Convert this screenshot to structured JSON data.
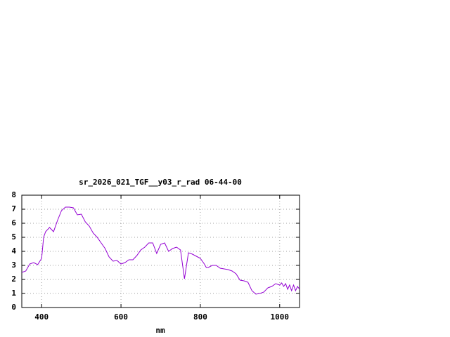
{
  "chart_data": {
    "type": "line",
    "title": "sr_2026_021_TGF__y03_r_rad 06-44-00",
    "x_label": "nm",
    "x": [
      350,
      360,
      370,
      380,
      390,
      400,
      405,
      410,
      420,
      430,
      440,
      450,
      460,
      470,
      480,
      490,
      500,
      510,
      520,
      530,
      540,
      550,
      560,
      570,
      580,
      590,
      600,
      610,
      620,
      630,
      640,
      650,
      660,
      670,
      680,
      690,
      700,
      710,
      720,
      730,
      740,
      750,
      760,
      770,
      780,
      790,
      800,
      810,
      815,
      820,
      830,
      840,
      850,
      860,
      870,
      880,
      890,
      900,
      910,
      920,
      930,
      940,
      950,
      960,
      970,
      980,
      990,
      1000,
      1005,
      1010,
      1015,
      1020,
      1025,
      1030,
      1035,
      1040,
      1045,
      1050
    ],
    "values": [
      2.5,
      2.6,
      3.1,
      3.2,
      3.05,
      3.5,
      5.0,
      5.4,
      5.7,
      5.4,
      6.2,
      6.9,
      7.15,
      7.15,
      7.1,
      6.6,
      6.65,
      6.1,
      5.8,
      5.3,
      5.0,
      4.6,
      4.2,
      3.6,
      3.3,
      3.35,
      3.1,
      3.2,
      3.4,
      3.4,
      3.7,
      4.1,
      4.3,
      4.6,
      4.6,
      3.85,
      4.5,
      4.6,
      4.0,
      4.2,
      4.3,
      4.1,
      2.05,
      3.9,
      3.8,
      3.65,
      3.5,
      3.1,
      2.85,
      2.85,
      3.0,
      3.0,
      2.8,
      2.75,
      2.7,
      2.6,
      2.4,
      1.95,
      1.9,
      1.8,
      1.2,
      0.95,
      1.0,
      1.1,
      1.4,
      1.5,
      1.7,
      1.6,
      1.75,
      1.5,
      1.7,
      1.3,
      1.6,
      1.2,
      1.6,
      1.2,
      1.5,
      1.3
    ],
    "color": "#9400d3",
    "xlim": [
      350,
      1050
    ],
    "xticks": [
      400,
      600,
      800,
      1000
    ],
    "ylim": [
      0,
      8
    ],
    "yticks": [
      0,
      1,
      2,
      3,
      4,
      5,
      6,
      7,
      8
    ],
    "grid": true
  }
}
